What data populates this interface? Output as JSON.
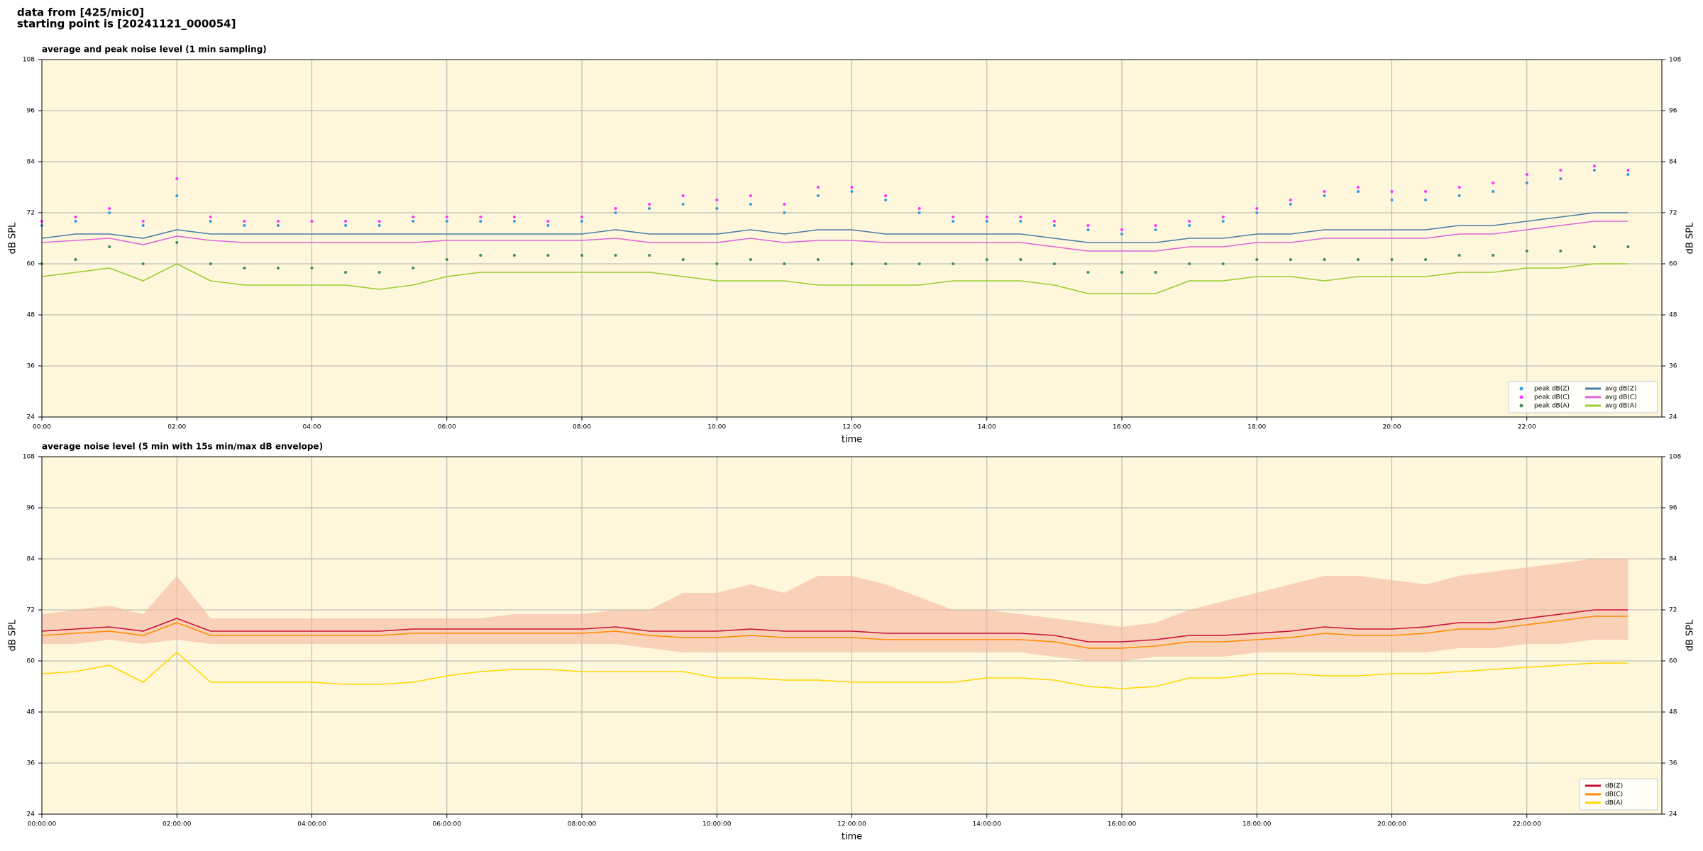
{
  "header": {
    "source": "data from [425/mic0]",
    "start": "starting point is [20241121_000054]"
  },
  "chart_data": [
    {
      "type": "line",
      "title": "average and peak noise level (1 min sampling)",
      "x_label": "time",
      "y_label": "dB SPL",
      "xlim": [
        0,
        24
      ],
      "ylim": [
        24,
        108
      ],
      "yticks": [
        24,
        36,
        48,
        60,
        72,
        84,
        96,
        108
      ],
      "xticks": [
        {
          "value": 0,
          "label": "00:00"
        },
        {
          "value": 2,
          "label": "02:00"
        },
        {
          "value": 4,
          "label": "04:00"
        },
        {
          "value": 6,
          "label": "06:00"
        },
        {
          "value": 8,
          "label": "08:00"
        },
        {
          "value": 10,
          "label": "10:00"
        },
        {
          "value": 12,
          "label": "12:00"
        },
        {
          "value": 14,
          "label": "14:00"
        },
        {
          "value": 16,
          "label": "16:00"
        },
        {
          "value": 18,
          "label": "18:00"
        },
        {
          "value": 20,
          "label": "20:00"
        },
        {
          "value": 22,
          "label": "22:00"
        }
      ],
      "grid": true,
      "legend": "lower right",
      "legend_columns": 2,
      "background": "#fef7dc",
      "x": [
        0,
        0.5,
        1,
        1.5,
        2,
        2.5,
        3,
        3.5,
        4,
        4.5,
        5,
        5.5,
        6,
        6.5,
        7,
        7.5,
        8,
        8.5,
        9,
        9.5,
        10,
        10.5,
        11,
        11.5,
        12,
        12.5,
        13,
        13.5,
        14,
        14.5,
        15,
        15.5,
        16,
        16.5,
        17,
        17.5,
        18,
        18.5,
        19,
        19.5,
        20,
        20.5,
        21,
        21.5,
        22,
        22.5,
        23,
        23.5
      ],
      "series": [
        {
          "name": "peak dB(Z)",
          "style": "markers",
          "color": "#3c9ad8",
          "values": [
            69,
            70,
            72,
            69,
            76,
            70,
            69,
            69,
            70,
            69,
            69,
            70,
            70,
            70,
            70,
            69,
            70,
            72,
            73,
            74,
            73,
            74,
            72,
            76,
            77,
            75,
            72,
            70,
            70,
            70,
            69,
            68,
            67,
            68,
            69,
            70,
            72,
            74,
            76,
            77,
            75,
            75,
            76,
            77,
            79,
            80,
            82,
            81
          ]
        },
        {
          "name": "peak dB(C)",
          "style": "markers",
          "color": "#ff33ff",
          "values": [
            70,
            71,
            73,
            70,
            80,
            71,
            70,
            70,
            70,
            70,
            70,
            71,
            71,
            71,
            71,
            70,
            71,
            73,
            74,
            76,
            75,
            76,
            74,
            78,
            78,
            76,
            73,
            71,
            71,
            71,
            70,
            69,
            68,
            69,
            70,
            71,
            73,
            75,
            77,
            78,
            77,
            77,
            78,
            79,
            81,
            82,
            83,
            82
          ]
        },
        {
          "name": "peak dB(A)",
          "style": "markers",
          "color": "#3f8f5a",
          "values": [
            60,
            61,
            64,
            60,
            65,
            60,
            59,
            59,
            59,
            58,
            58,
            59,
            61,
            62,
            62,
            62,
            62,
            62,
            62,
            61,
            60,
            61,
            60,
            61,
            60,
            60,
            60,
            60,
            61,
            61,
            60,
            58,
            58,
            58,
            60,
            60,
            61,
            61,
            61,
            61,
            61,
            61,
            62,
            62,
            63,
            63,
            64,
            64
          ]
        },
        {
          "name": "avg dB(Z)",
          "style": "line",
          "color": "#4a7fa5",
          "values": [
            66,
            67,
            67,
            66,
            68,
            67,
            67,
            67,
            67,
            67,
            67,
            67,
            67,
            67,
            67,
            67,
            67,
            68,
            67,
            67,
            67,
            68,
            67,
            68,
            68,
            67,
            67,
            67,
            67,
            67,
            66,
            65,
            65,
            65,
            66,
            66,
            67,
            67,
            68,
            68,
            68,
            68,
            69,
            69,
            70,
            71,
            72,
            72
          ]
        },
        {
          "name": "avg dB(C)",
          "style": "line",
          "color": "#e066d8",
          "values": [
            65,
            65.5,
            66,
            64.5,
            66.5,
            65.5,
            65,
            65,
            65,
            65,
            65,
            65,
            65.5,
            65.5,
            65.5,
            65.5,
            65.5,
            66,
            65,
            65,
            65,
            66,
            65,
            65.5,
            65.5,
            65,
            65,
            65,
            65,
            65,
            64,
            63,
            63,
            63,
            64,
            64,
            65,
            65,
            66,
            66,
            66,
            66,
            67,
            67,
            68,
            69,
            70,
            70
          ]
        },
        {
          "name": "avg dB(A)",
          "style": "line",
          "color": "#9acd32",
          "values": [
            57,
            58,
            59,
            56,
            60,
            56,
            55,
            55,
            55,
            55,
            54,
            55,
            57,
            58,
            58,
            58,
            58,
            58,
            58,
            57,
            56,
            56,
            56,
            55,
            55,
            55,
            55,
            56,
            56,
            56,
            55,
            53,
            53,
            53,
            56,
            56,
            57,
            57,
            56,
            57,
            57,
            57,
            58,
            58,
            59,
            59,
            60,
            60
          ]
        }
      ]
    },
    {
      "type": "line",
      "title": "average noise level (5 min with 15s min/max dB envelope)",
      "x_label": "time",
      "y_label": "dB SPL",
      "xlim": [
        0,
        24
      ],
      "ylim": [
        24,
        108
      ],
      "yticks": [
        24,
        36,
        48,
        60,
        72,
        84,
        96,
        108
      ],
      "xticks": [
        {
          "value": 0,
          "label": "00:00:00"
        },
        {
          "value": 2,
          "label": "02:00:00"
        },
        {
          "value": 4,
          "label": "04:00:00"
        },
        {
          "value": 6,
          "label": "06:00:00"
        },
        {
          "value": 8,
          "label": "08:00:00"
        },
        {
          "value": 10,
          "label": "10:00:00"
        },
        {
          "value": 12,
          "label": "12:00:00"
        },
        {
          "value": 14,
          "label": "14:00:00"
        },
        {
          "value": 16,
          "label": "16:00:00"
        },
        {
          "value": 18,
          "label": "18:00:00"
        },
        {
          "value": 20,
          "label": "20:00:00"
        },
        {
          "value": 22,
          "label": "22:00:00"
        }
      ],
      "grid": true,
      "legend": "lower right",
      "legend_columns": 1,
      "background": "#fef7dc",
      "x": [
        0,
        0.5,
        1,
        1.5,
        2,
        2.5,
        3,
        3.5,
        4,
        4.5,
        5,
        5.5,
        6,
        6.5,
        7,
        7.5,
        8,
        8.5,
        9,
        9.5,
        10,
        10.5,
        11,
        11.5,
        12,
        12.5,
        13,
        13.5,
        14,
        14.5,
        15,
        15.5,
        16,
        16.5,
        17,
        17.5,
        18,
        18.5,
        19,
        19.5,
        20,
        20.5,
        21,
        21.5,
        22,
        22.5,
        23,
        23.5
      ],
      "envelope": {
        "color": "#f5b7a0",
        "upper": [
          71,
          72,
          73,
          71,
          80,
          70,
          70,
          70,
          70,
          70,
          70,
          70,
          70,
          70,
          71,
          71,
          71,
          72,
          72,
          76,
          76,
          78,
          76,
          80,
          80,
          78,
          75,
          72,
          72,
          71,
          70,
          69,
          68,
          69,
          72,
          74,
          76,
          78,
          80,
          80,
          79,
          78,
          80,
          81,
          82,
          83,
          84,
          84
        ],
        "lower": [
          64,
          64,
          65,
          64,
          65,
          64,
          64,
          64,
          64,
          64,
          64,
          64,
          64,
          64,
          64,
          64,
          64,
          64,
          63,
          62,
          62,
          62,
          62,
          62,
          62,
          62,
          62,
          62,
          62,
          62,
          61,
          60,
          60,
          61,
          61,
          61,
          62,
          62,
          62,
          62,
          62,
          62,
          63,
          63,
          64,
          64,
          65,
          65
        ]
      },
      "series": [
        {
          "name": "dB(Z)",
          "style": "line",
          "color": "#c8103a",
          "values": [
            67,
            67.5,
            68,
            67,
            70,
            67,
            67,
            67,
            67,
            67,
            67,
            67.5,
            67.5,
            67.5,
            67.5,
            67.5,
            67.5,
            68,
            67,
            67,
            67,
            67.5,
            67,
            67,
            67,
            66.5,
            66.5,
            66.5,
            66.5,
            66.5,
            66,
            64.5,
            64.5,
            65,
            66,
            66,
            66.5,
            67,
            68,
            67.5,
            67.5,
            68,
            69,
            69,
            70,
            71,
            72,
            72
          ]
        },
        {
          "name": "dB(C)",
          "style": "line",
          "color": "#ff8c00",
          "values": [
            66,
            66.5,
            67,
            66,
            69,
            66,
            66,
            66,
            66,
            66,
            66,
            66.5,
            66.5,
            66.5,
            66.5,
            66.5,
            66.5,
            67,
            66,
            65.5,
            65.5,
            66,
            65.5,
            65.5,
            65.5,
            65,
            65,
            65,
            65,
            65,
            64.5,
            63,
            63,
            63.5,
            64.5,
            64.5,
            65,
            65.5,
            66.5,
            66,
            66,
            66.5,
            67.5,
            67.5,
            68.5,
            69.5,
            70.5,
            70.5
          ]
        },
        {
          "name": "dB(A)",
          "style": "line",
          "color": "#ffd700",
          "values": [
            57,
            57.5,
            59,
            55,
            62,
            55,
            55,
            55,
            55,
            54.5,
            54.5,
            55,
            56.5,
            57.5,
            58,
            58,
            57.5,
            57.5,
            57.5,
            57.5,
            56,
            56,
            55.5,
            55.5,
            55,
            55,
            55,
            55,
            56,
            56,
            55.5,
            54,
            53.5,
            54,
            56,
            56,
            57,
            57,
            56.5,
            56.5,
            57,
            57,
            57.5,
            58,
            58.5,
            59,
            59.5,
            59.5
          ]
        }
      ]
    }
  ]
}
